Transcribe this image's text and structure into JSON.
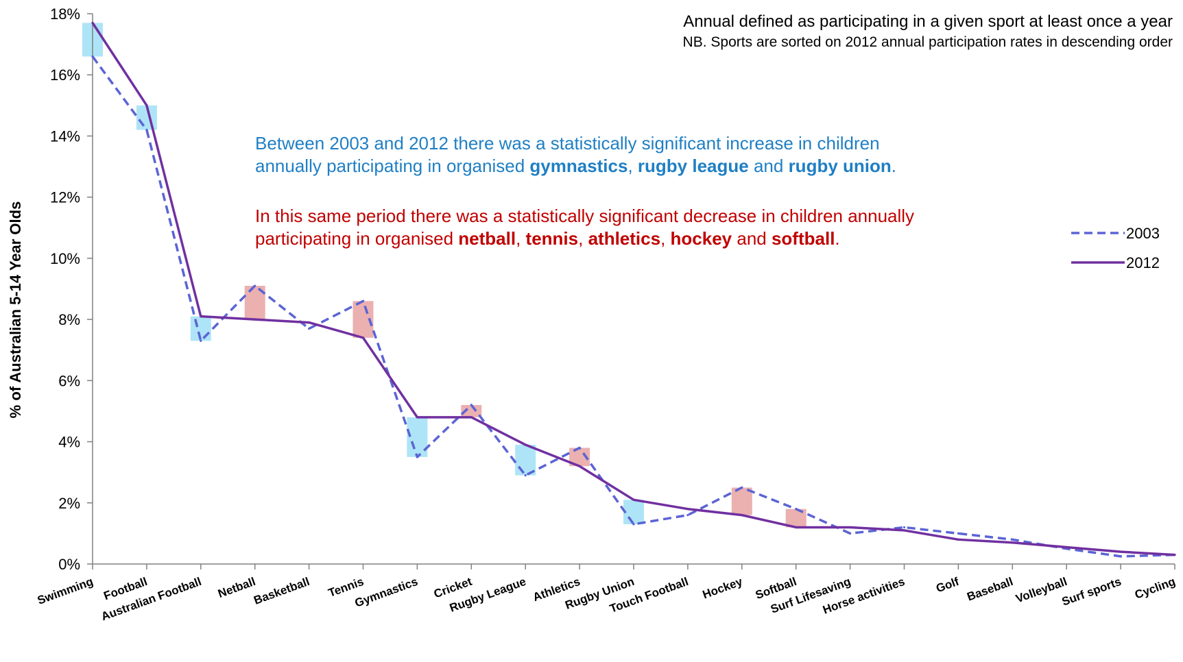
{
  "chart_data": {
    "type": "line",
    "categories": [
      "Swimming",
      "Football",
      "Australian Football",
      "Netball",
      "Basketball",
      "Tennis",
      "Gymnastics",
      "Cricket",
      "Rugby League",
      "Athletics",
      "Rugby Union",
      "Touch Football",
      "Hockey",
      "Softball",
      "Surf Lifesaving",
      "Horse activities",
      "Golf",
      "Baseball",
      "Volleyball",
      "Surf sports",
      "Cycling"
    ],
    "series": [
      {
        "name": "2003",
        "style": "dashed",
        "color": "#5b64d4",
        "values": [
          16.6,
          14.2,
          7.3,
          9.1,
          7.7,
          8.6,
          3.5,
          5.2,
          2.9,
          3.8,
          1.3,
          1.6,
          2.5,
          1.8,
          1.0,
          1.2,
          1.0,
          0.8,
          0.5,
          0.25,
          0.3
        ]
      },
      {
        "name": "2012",
        "style": "solid",
        "color": "#7030a0",
        "values": [
          17.7,
          15.0,
          8.1,
          8.0,
          7.9,
          7.4,
          4.8,
          4.8,
          3.9,
          3.2,
          2.1,
          1.8,
          1.6,
          1.2,
          1.2,
          1.1,
          0.8,
          0.7,
          0.55,
          0.4,
          0.3
        ]
      }
    ],
    "significant_increase": [
      "Swimming",
      "Football",
      "Australian Football",
      "Gymnastics",
      "Rugby League",
      "Rugby Union"
    ],
    "significant_decrease": [
      "Netball",
      "Tennis",
      "Cricket",
      "Athletics",
      "Hockey",
      "Softball"
    ],
    "increase_color": "#aee4f7",
    "decrease_color": "#ebb0b0",
    "ylabel": "% of Australian 5-14 Year Olds",
    "ylim": [
      0,
      18
    ],
    "yticks": [
      0,
      2,
      4,
      6,
      8,
      10,
      12,
      14,
      16,
      18
    ],
    "ytick_labels": [
      "0%",
      "2%",
      "4%",
      "6%",
      "8%",
      "10%",
      "12%",
      "14%",
      "16%",
      "18%"
    ],
    "grid": false,
    "legend_position": "right"
  },
  "notes": {
    "line1": "Annual defined as participating in a given sport at least once a year",
    "line2": "NB. Sports are sorted on 2012 annual participation rates in descending order"
  },
  "annotations": {
    "increase": {
      "t1": "Between 2003 and 2012 there was a statistically significant increase in children",
      "t2": "annually participating in organised ",
      "b1": "gymnastics",
      "s1": ", ",
      "b2": "rugby league",
      "s2": " and ",
      "b3": "rugby union",
      "end": "."
    },
    "decrease": {
      "t1": "In this same period there was a statistically significant decrease in children annually",
      "t2": "participating in organised ",
      "b1": "netball",
      "s1": ", ",
      "b2": "tennis",
      "s2": ", ",
      "b3": "athletics",
      "s3": ", ",
      "b4": "hockey",
      "s4": " and ",
      "b5": "softball",
      "end": "."
    }
  }
}
